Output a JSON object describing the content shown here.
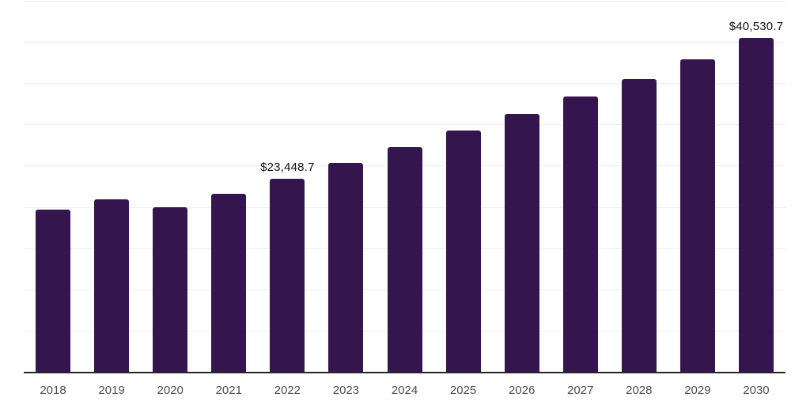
{
  "chart_data": {
    "type": "bar",
    "title": "",
    "xlabel": "",
    "ylabel": "",
    "categories": [
      "2018",
      "2019",
      "2020",
      "2021",
      "2022",
      "2023",
      "2024",
      "2025",
      "2026",
      "2027",
      "2028",
      "2029",
      "2030"
    ],
    "values": [
      19700,
      20950,
      20000,
      21600,
      23448.7,
      25350,
      27250,
      29300,
      31250,
      33350,
      35500,
      37900,
      40530.7
    ],
    "annotations": [
      {
        "category": "2022",
        "text": "$23,448.7"
      },
      {
        "category": "2030",
        "text": "$40,530.7"
      }
    ],
    "ylim": [
      0,
      45000
    ],
    "gridline_interval": 5000,
    "grid": "horizontal",
    "legend": "none",
    "y_axis_labels_visible": false,
    "bar_color": "#35154E",
    "gridline_color": "#f0f0f0",
    "axis_line_color": "#262626",
    "tick_label_color": "#4d4d4d",
    "annotation_color": "#111111"
  }
}
